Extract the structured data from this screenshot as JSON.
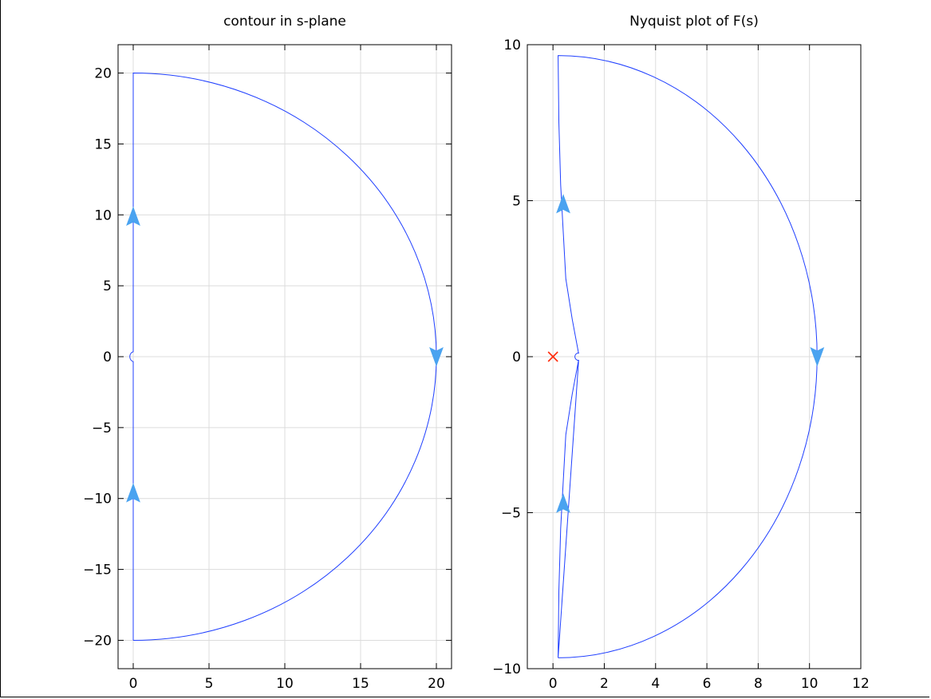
{
  "colors": {
    "curve": "#1f3fff",
    "arrow": "#4aa3f0",
    "marker": "#ff2a0a",
    "grid": "#dcdcdc"
  },
  "chart_data": [
    {
      "type": "line",
      "title": "contour in s-plane",
      "xlabel": "",
      "ylabel": "",
      "xlim": [
        -1,
        21
      ],
      "ylim": [
        -22,
        22
      ],
      "xticks": [
        0,
        5,
        10,
        15,
        20
      ],
      "yticks": [
        -20,
        -15,
        -10,
        -5,
        0,
        5,
        10,
        15,
        20
      ],
      "xtick_labels": [
        "0",
        "5",
        "10",
        "15",
        "20"
      ],
      "ytick_labels": [
        "−20",
        "−15",
        "−10",
        "−5",
        "0",
        "5",
        "10",
        "15",
        "20"
      ],
      "grid": true,
      "contour": {
        "vertical_x": 0,
        "from_y": -20,
        "to_y": 20,
        "indentation_radius": 0.35,
        "arc_radius": 20,
        "arc_center": [
          0,
          0
        ]
      },
      "direction_arrows": [
        {
          "x": 0,
          "y": -9.6,
          "direction": "up"
        },
        {
          "x": 0,
          "y": 9.9,
          "direction": "up"
        },
        {
          "x": 20,
          "y": 0,
          "direction": "down"
        }
      ],
      "markers": []
    },
    {
      "type": "line",
      "title": "Nyquist plot of F(s)",
      "xlabel": "",
      "ylabel": "",
      "xlim": [
        -1,
        12
      ],
      "ylim": [
        -10,
        10
      ],
      "xticks": [
        0,
        2,
        4,
        6,
        8,
        10,
        12
      ],
      "yticks": [
        -10,
        -5,
        0,
        5,
        10
      ],
      "xtick_labels": [
        "0",
        "2",
        "4",
        "6",
        "8",
        "10",
        "12"
      ],
      "ytick_labels": [
        "−10",
        "−5",
        "0",
        "5",
        "10"
      ],
      "grid": true,
      "curve_upper": {
        "x": [
          0.2,
          0.23,
          0.3,
          0.4,
          0.5,
          0.75,
          1.0
        ],
        "y": [
          9.65,
          7.5,
          5.5,
          4.0,
          2.5,
          1.2,
          0.1
        ]
      },
      "closing_arc": {
        "from": [
          0.2,
          9.65
        ],
        "to": [
          0.2,
          -9.65
        ],
        "rightmost_x": 10.3,
        "center_x": 0.2
      },
      "indentation": {
        "x": 1.0,
        "y": 0,
        "radius": 0.12
      },
      "direction_arrows": [
        {
          "x": 0.4,
          "y": -4.7,
          "direction": "up"
        },
        {
          "x": 0.4,
          "y": 4.9,
          "direction": "up"
        },
        {
          "x": 10.3,
          "y": 0,
          "direction": "down"
        }
      ],
      "markers": [
        {
          "x": 0,
          "y": 0,
          "symbol": "x"
        }
      ]
    }
  ]
}
